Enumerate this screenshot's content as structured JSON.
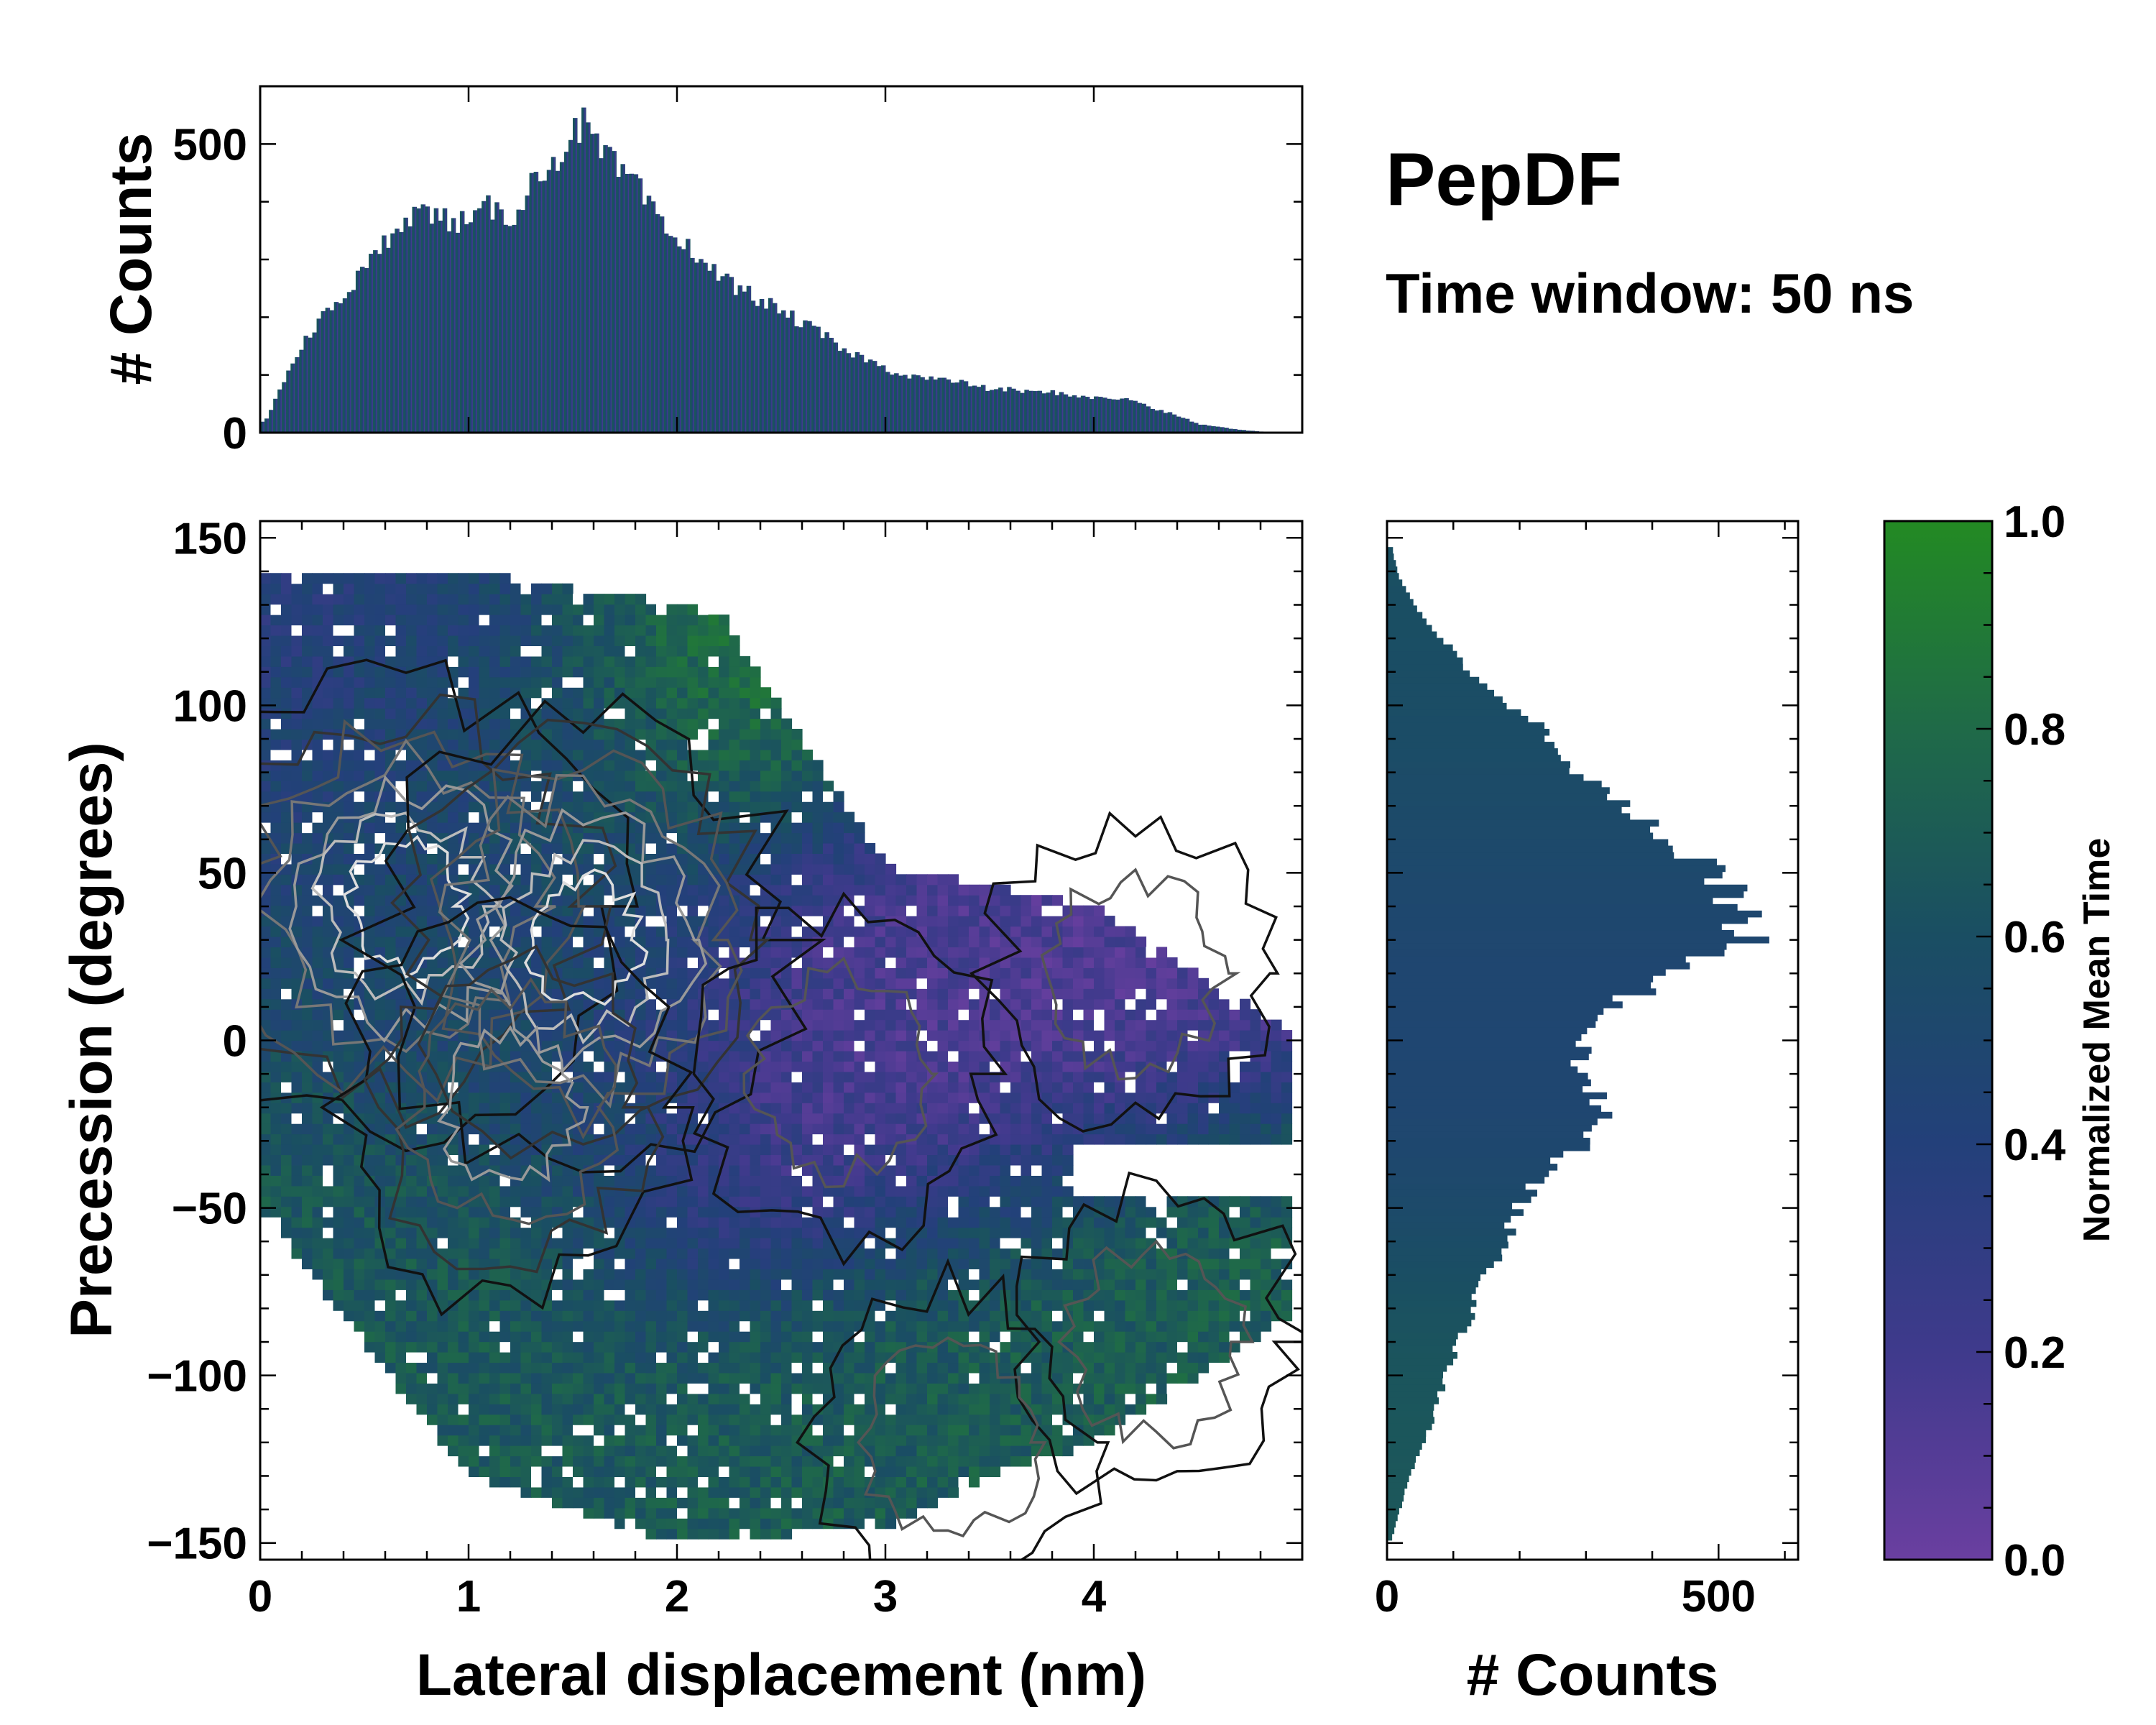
{
  "title": "PepDF",
  "subtitle": "Time window: 50 ns",
  "colors": {
    "cmap": [
      "#6a3fa0",
      "#3f3a8c",
      "#23407a",
      "#1a4e63",
      "#1f6a48",
      "#238a23"
    ],
    "contour_colors": [
      "#111111",
      "#333333",
      "#555555",
      "#777777",
      "#999999",
      "#bbbbbb",
      "#dddddd"
    ],
    "white": "#ffffff"
  },
  "chart_data": [
    {
      "id": "main",
      "type": "heatmap",
      "xlabel": "Lateral displacement (nm)",
      "ylabel": "Precession (degrees)",
      "xlim": [
        0,
        5.0
      ],
      "ylim": [
        -155,
        155
      ],
      "xticks": [
        0,
        1,
        2,
        3,
        4
      ],
      "xtick_labels": [
        "0",
        "1",
        "2",
        "3",
        "4"
      ],
      "yticks": [
        -150,
        -100,
        -50,
        0,
        50,
        100,
        150
      ],
      "ytick_labels": [
        "−150",
        "−100",
        "−50",
        "0",
        "50",
        "100",
        "150"
      ],
      "value": "Normalized Mean Time",
      "contours": "density contours overlaid (black to white with increasing density)",
      "density_peaks": [
        {
          "x": 0.7,
          "y": 40,
          "weight": 1.0
        },
        {
          "x": 1.55,
          "y": 30,
          "weight": 1.0
        },
        {
          "x": 1.2,
          "y": -20,
          "weight": 0.6
        },
        {
          "x": 2.8,
          "y": -10,
          "weight": 0.35
        },
        {
          "x": 4.2,
          "y": 20,
          "weight": 0.25
        },
        {
          "x": 4.3,
          "y": -90,
          "weight": 0.25
        },
        {
          "x": 3.3,
          "y": -120,
          "weight": 0.25
        }
      ],
      "time_regions": [
        {
          "x": 4.3,
          "y": -90,
          "value": 0.72
        },
        {
          "x": 3.3,
          "y": -115,
          "value": 0.7
        },
        {
          "x": 0.5,
          "y": -80,
          "value": 0.68
        },
        {
          "x": 1.0,
          "y": 90,
          "value": 0.55
        },
        {
          "x": 3.8,
          "y": 30,
          "value": 0.12
        },
        {
          "x": 2.9,
          "y": 0,
          "value": 0.15
        },
        {
          "x": 2.4,
          "y": 120,
          "value": 0.85
        },
        {
          "x": 1.3,
          "y": 10,
          "value": 0.5
        },
        {
          "x": 0.4,
          "y": 120,
          "value": 0.35
        }
      ]
    },
    {
      "id": "top-histogram",
      "type": "bar",
      "orientation": "vertical",
      "xlim": [
        0,
        5.0
      ],
      "ylim": [
        0,
        600
      ],
      "ylabel": "# Counts",
      "yticks": [
        0,
        500
      ],
      "ytick_labels": [
        "0",
        "500"
      ],
      "x": [
        0.025,
        0.1,
        0.2,
        0.3,
        0.4,
        0.5,
        0.6,
        0.7,
        0.8,
        0.9,
        1.0,
        1.1,
        1.2,
        1.3,
        1.4,
        1.5,
        1.55,
        1.6,
        1.7,
        1.8,
        1.9,
        2.0,
        2.1,
        2.2,
        2.3,
        2.4,
        2.5,
        2.6,
        2.7,
        2.8,
        2.9,
        3.0,
        3.1,
        3.2,
        3.3,
        3.4,
        3.5,
        3.6,
        3.7,
        3.8,
        3.9,
        4.0,
        4.1,
        4.2,
        4.3,
        4.4,
        4.5,
        4.6,
        4.7,
        4.8,
        4.9
      ],
      "values": [
        20,
        80,
        150,
        200,
        240,
        280,
        330,
        380,
        380,
        370,
        360,
        390,
        370,
        430,
        470,
        510,
        540,
        500,
        460,
        430,
        370,
        330,
        310,
        270,
        250,
        230,
        210,
        190,
        170,
        140,
        130,
        110,
        100,
        95,
        90,
        85,
        75,
        75,
        70,
        70,
        65,
        60,
        60,
        55,
        40,
        30,
        15,
        10,
        5,
        2,
        0
      ]
    },
    {
      "id": "right-histogram",
      "type": "bar",
      "orientation": "horizontal",
      "ylim": [
        -155,
        155
      ],
      "xlim": [
        0,
        620
      ],
      "xlabel": "# Counts",
      "xticks": [
        0,
        500
      ],
      "xtick_labels": [
        "0",
        "500"
      ],
      "y": [
        150,
        140,
        130,
        120,
        110,
        100,
        90,
        80,
        70,
        60,
        50,
        40,
        30,
        20,
        10,
        0,
        -10,
        -20,
        -30,
        -40,
        -50,
        -60,
        -70,
        -80,
        -90,
        -100,
        -110,
        -120,
        -130,
        -140,
        -150
      ],
      "values": [
        5,
        15,
        40,
        80,
        130,
        190,
        250,
        290,
        350,
        420,
        500,
        530,
        540,
        430,
        340,
        290,
        300,
        330,
        300,
        230,
        200,
        180,
        150,
        130,
        110,
        90,
        75,
        55,
        35,
        20,
        5
      ]
    },
    {
      "id": "colorbar",
      "type": "colorbar",
      "label": "Normalized Mean Time",
      "range": [
        0,
        1
      ],
      "ticks": [
        0.0,
        0.2,
        0.4,
        0.6,
        0.8,
        1.0
      ],
      "tick_labels": [
        "0.0",
        "0.2",
        "0.4",
        "0.6",
        "0.8",
        "1.0"
      ]
    }
  ]
}
